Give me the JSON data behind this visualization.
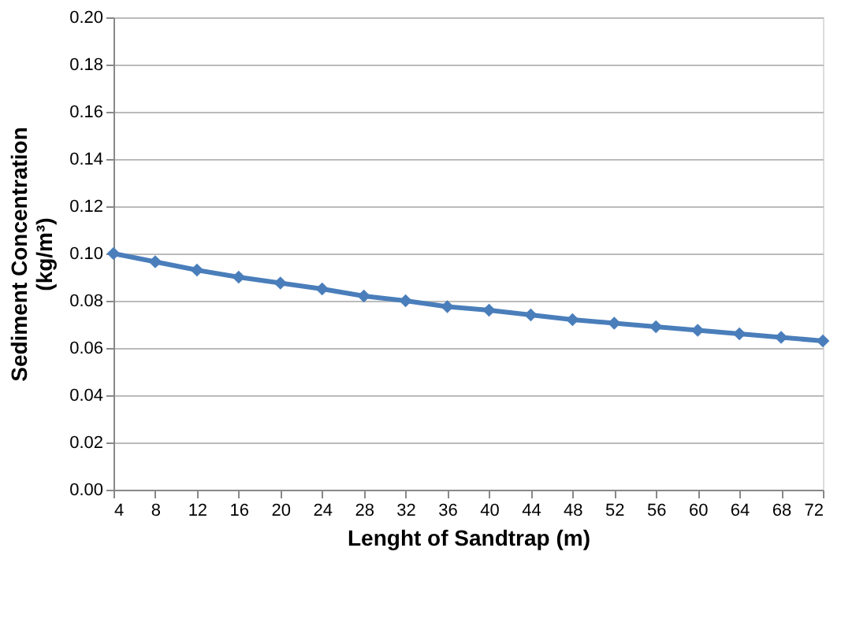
{
  "chart_data": {
    "type": "line",
    "xlabel": "Lenght of Sandtrap (m)",
    "ylabel": "Sediment Concentration\n(kg/m³)",
    "x": [
      4,
      8,
      12,
      16,
      20,
      24,
      28,
      32,
      36,
      40,
      44,
      48,
      52,
      56,
      60,
      64,
      68,
      72
    ],
    "series": [
      {
        "color": "#4a7ebb",
        "values": [
          0.1,
          0.0965,
          0.093,
          0.09,
          0.0875,
          0.085,
          0.082,
          0.08,
          0.0775,
          0.076,
          0.074,
          0.072,
          0.0705,
          0.069,
          0.0675,
          0.066,
          0.0645,
          0.063
        ]
      }
    ],
    "xlim": [
      4,
      72
    ],
    "xticks": [
      4,
      8,
      12,
      16,
      20,
      24,
      28,
      32,
      36,
      40,
      44,
      48,
      52,
      56,
      60,
      64,
      68,
      72
    ],
    "ylim": [
      0,
      0.2
    ],
    "yticks": [
      {
        "value": 0,
        "label": "0.00"
      },
      {
        "value": 0.02,
        "label": "0.02"
      },
      {
        "value": 0.04,
        "label": "0.04"
      },
      {
        "value": 0.06,
        "label": "0.06"
      },
      {
        "value": 0.08,
        "label": "0.08"
      },
      {
        "value": 0.1,
        "label": "0.10"
      },
      {
        "value": 0.12,
        "label": "0.12"
      },
      {
        "value": 0.14,
        "label": "0.14"
      },
      {
        "value": 0.16,
        "label": "0.16"
      },
      {
        "value": 0.18,
        "label": "0.18"
      },
      {
        "value": 0.2,
        "label": "0.20"
      }
    ],
    "grid": "y",
    "marker": "diamond",
    "line_style": "solid",
    "legend": false
  }
}
